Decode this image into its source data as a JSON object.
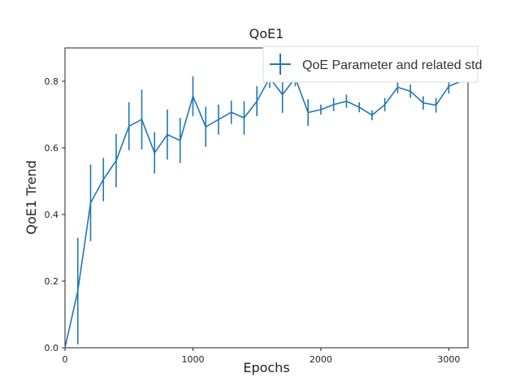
{
  "chart_data": {
    "type": "line",
    "title": "QoE1",
    "xlabel": "Epochs",
    "ylabel": "QoE1 Trend",
    "xlim": [
      0,
      3150
    ],
    "ylim": [
      0,
      0.9
    ],
    "xticks": [
      0,
      1000,
      2000,
      3000
    ],
    "yticks": [
      0.0,
      0.2,
      0.4,
      0.6,
      0.8
    ],
    "x_tick_labels": [
      "0",
      "1000",
      "2000",
      "3000"
    ],
    "y_tick_labels": [
      "0.0",
      "0.2",
      "0.4",
      "0.6",
      "0.8"
    ],
    "grid": false,
    "legend_position": "top-right",
    "color": "#1f77b4",
    "series": [
      {
        "name": "QoE Parameter and related std",
        "x": [
          0,
          100,
          200,
          300,
          400,
          500,
          600,
          700,
          800,
          900,
          1000,
          1100,
          1200,
          1300,
          1400,
          1500,
          1600,
          1700,
          1800,
          1900,
          2000,
          2100,
          2200,
          2300,
          2400,
          2500,
          2600,
          2700,
          2800,
          2900,
          3000,
          3100
        ],
        "y": [
          0.0,
          0.17,
          0.435,
          0.505,
          0.562,
          0.665,
          0.685,
          0.585,
          0.64,
          0.622,
          0.755,
          0.663,
          0.685,
          0.707,
          0.69,
          0.74,
          0.81,
          0.76,
          0.81,
          0.706,
          0.715,
          0.73,
          0.74,
          0.722,
          0.698,
          0.73,
          0.782,
          0.77,
          0.735,
          0.728,
          0.785,
          0.8
        ],
        "std": [
          0.0,
          0.16,
          0.115,
          0.065,
          0.08,
          0.072,
          0.09,
          0.062,
          0.075,
          0.068,
          0.06,
          0.06,
          0.045,
          0.035,
          0.05,
          0.045,
          0.03,
          0.055,
          0.025,
          0.04,
          0.015,
          0.02,
          0.02,
          0.015,
          0.015,
          0.02,
          0.018,
          0.02,
          0.02,
          0.022,
          0.022,
          0.0
        ]
      }
    ]
  }
}
